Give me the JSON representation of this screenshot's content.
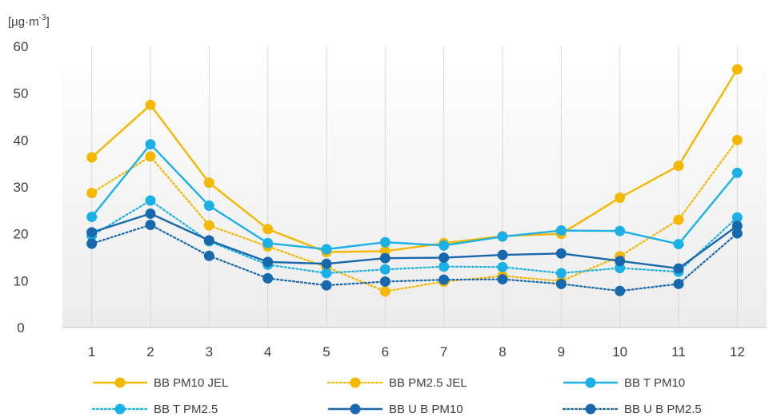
{
  "chart_data": {
    "type": "line",
    "title": "",
    "ylabel": "[µg·m",
    "ylabel_sup": "-3",
    "ylabel_close": "]",
    "xlabel": "",
    "ylim": [
      0,
      60
    ],
    "yticks": [
      0,
      10,
      20,
      30,
      40,
      50,
      60
    ],
    "categories": [
      "1",
      "2",
      "3",
      "4",
      "5",
      "6",
      "7",
      "8",
      "9",
      "10",
      "11",
      "12"
    ],
    "grid": "vertical",
    "legend_position": "bottom",
    "series": [
      {
        "name": "BB PM10 JEL",
        "color": "#F5B800",
        "dash": "solid",
        "values": [
          36.3,
          47.5,
          30.9,
          21.0,
          16.1,
          16.3,
          18.0,
          19.5,
          20.0,
          27.7,
          34.5,
          55.1
        ]
      },
      {
        "name": "BB PM2.5 JEL",
        "color": "#F5B800",
        "dash": "dotted",
        "values": [
          28.7,
          36.5,
          21.8,
          17.3,
          12.9,
          7.7,
          9.8,
          11.0,
          9.9,
          15.2,
          23.0,
          40.0
        ]
      },
      {
        "name": "BB T PM10",
        "color": "#1CB1E6",
        "dash": "solid",
        "values": [
          23.6,
          39.1,
          26.0,
          18.0,
          16.7,
          18.2,
          17.5,
          19.4,
          20.7,
          20.6,
          17.8,
          33.0
        ]
      },
      {
        "name": "BB T PM2.5",
        "color": "#1CB1E6",
        "dash": "dotted",
        "values": [
          19.6,
          27.1,
          18.4,
          13.4,
          11.6,
          12.4,
          13.0,
          12.9,
          11.6,
          12.7,
          11.9,
          23.5
        ]
      },
      {
        "name": "BB U B PM10",
        "color": "#1868AE",
        "dash": "solid",
        "values": [
          20.3,
          24.3,
          18.6,
          14.0,
          13.6,
          14.8,
          14.9,
          15.5,
          15.8,
          14.2,
          12.6,
          21.7
        ]
      },
      {
        "name": "BB U B PM2.5",
        "color": "#1868AE",
        "dash": "dotted",
        "values": [
          17.9,
          21.9,
          15.3,
          10.5,
          9.0,
          9.8,
          10.2,
          10.3,
          9.3,
          7.8,
          9.3,
          20.1
        ]
      }
    ]
  }
}
